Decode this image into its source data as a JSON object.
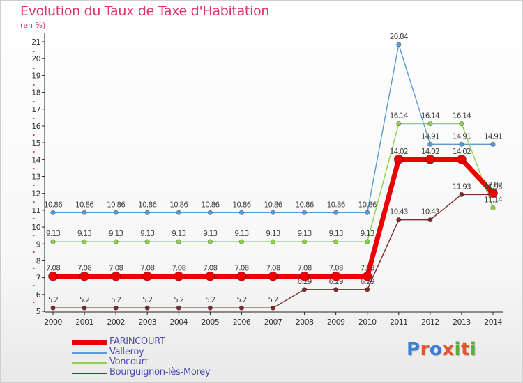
{
  "title": "Evolution du Taux de Taxe d'Habitation",
  "unit": "(en %)",
  "logo": {
    "text": "Proxiti",
    "letter_colors": [
      "#3a7fd5",
      "#e8542a",
      "#3a7fd5",
      "#e8542a",
      "#58b033",
      "#e8542a",
      "#58b033"
    ]
  },
  "chart_data": {
    "type": "line",
    "x": [
      "2000",
      "2001",
      "2002",
      "2003",
      "2004",
      "2005",
      "2006",
      "2007",
      "2008",
      "2009",
      "2010",
      "2011",
      "2012",
      "2013",
      "2014"
    ],
    "ylim": [
      5,
      21
    ],
    "yticks": [
      "5",
      "6",
      "7",
      "8",
      "9",
      "10",
      "11",
      "12",
      "13",
      "14",
      "15",
      "16",
      "17",
      "18",
      "19",
      "20",
      "21"
    ],
    "grid": false,
    "legend_position": "bottom-left",
    "series": [
      {
        "name": "FARINCOURT",
        "color": "#ee0000",
        "values": [
          7.08,
          7.08,
          7.08,
          7.08,
          7.08,
          7.08,
          7.08,
          7.08,
          7.08,
          7.08,
          7.08,
          14.02,
          14.02,
          14.02,
          12.02
        ],
        "labels": [
          "7.08",
          "7.08",
          "7.08",
          "7.08",
          "7.08",
          "7.08",
          "7.08",
          "7.08",
          "7.08",
          "7.08",
          "7.08",
          "14.02",
          "14.02",
          "14.02",
          "12.02"
        ]
      },
      {
        "name": "Valleroy",
        "color": "#5b9bd5",
        "values": [
          10.86,
          10.86,
          10.86,
          10.86,
          10.86,
          10.86,
          10.86,
          10.86,
          10.86,
          10.86,
          10.86,
          20.84,
          14.91,
          14.91,
          14.91
        ],
        "labels": [
          "10.86",
          "10.86",
          "10.86",
          "10.86",
          "10.86",
          "10.86",
          "10.86",
          "10.86",
          "10.86",
          "10.86",
          "10.86",
          "20.84",
          "14.91",
          "14.91",
          "14.91"
        ]
      },
      {
        "name": "Voncourt",
        "color": "#8fd14f",
        "values": [
          9.13,
          9.13,
          9.13,
          9.13,
          9.13,
          9.13,
          9.13,
          9.13,
          9.13,
          9.13,
          9.13,
          16.14,
          16.14,
          16.14,
          11.14
        ],
        "labels": [
          "9.13",
          "9.13",
          "9.13",
          "9.13",
          "9.13",
          "9.13",
          "9.13",
          "9.13",
          "9.13",
          "9.13",
          "9.13",
          "16.14",
          "16.14",
          "16.14",
          "11.14"
        ]
      },
      {
        "name": "Bourguignon-lès-Morey",
        "color": "#7b2c2c",
        "values": [
          5.2,
          5.2,
          5.2,
          5.2,
          5.2,
          5.2,
          5.2,
          5.2,
          6.29,
          6.29,
          6.29,
          10.43,
          10.43,
          11.93,
          11.93
        ],
        "labels": [
          "5.2",
          "5.2",
          "5.2",
          "5.2",
          "5.2",
          "5.2",
          "5.2",
          "5.2",
          "6.29",
          "6.29",
          "6.29",
          "10.43",
          "10.43",
          "11.93",
          "11.93"
        ]
      }
    ]
  }
}
